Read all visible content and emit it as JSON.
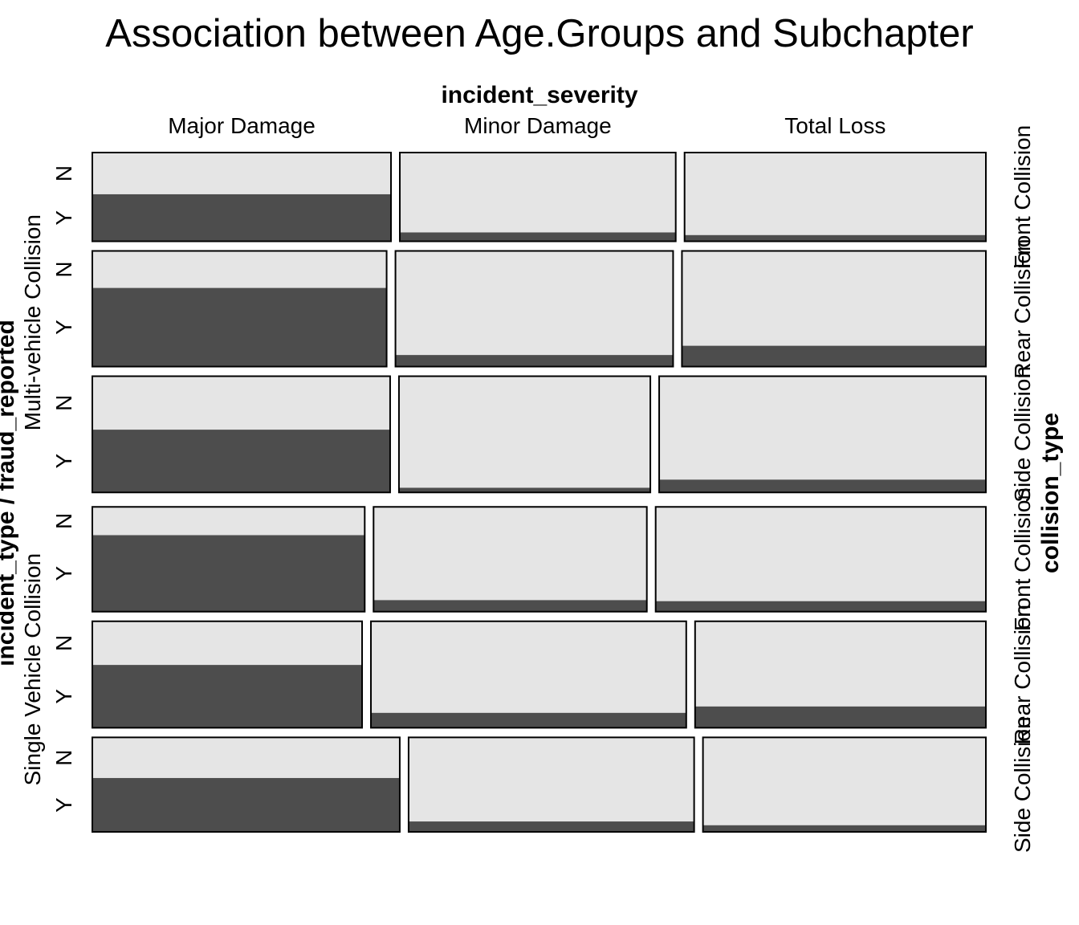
{
  "chart_data": {
    "type": "mosaic",
    "title": "Association between Age.Groups and Subchapter",
    "column_variable": "incident_severity",
    "left_variable": "incident_type / fraud_reported",
    "right_variable": "collision_type",
    "columns": [
      "Major Damage",
      "Minor Damage",
      "Total Loss"
    ],
    "fill_levels": [
      "N",
      "Y"
    ],
    "colors": {
      "N": "#e5e5e5",
      "Y": "#4d4d4d",
      "border": "#000000"
    },
    "incident_groups": [
      {
        "name": "Multi-vehicle Collision",
        "rows": [
          0,
          1,
          2
        ]
      },
      {
        "name": "Single Vehicle Collision",
        "rows": [
          3,
          4,
          5
        ]
      }
    ],
    "rows": [
      {
        "incident_type": "Multi-vehicle Collision",
        "collision_type": "Front Collision",
        "row_share": 0.155,
        "col_share": [
          0.341,
          0.315,
          0.344
        ],
        "y_share": [
          0.53,
          0.1,
          0.07
        ]
      },
      {
        "incident_type": "Multi-vehicle Collision",
        "collision_type": "Rear Collision",
        "row_share": 0.202,
        "col_share": [
          0.336,
          0.317,
          0.347
        ],
        "y_share": [
          0.68,
          0.1,
          0.18
        ]
      },
      {
        "incident_type": "Multi-vehicle Collision",
        "collision_type": "Side Collision",
        "row_share": 0.203,
        "col_share": [
          0.34,
          0.287,
          0.373
        ],
        "y_share": [
          0.54,
          0.04,
          0.11
        ]
      },
      {
        "incident_type": "Single Vehicle Collision",
        "collision_type": "Front Collision",
        "row_share": 0.183,
        "col_share": [
          0.311,
          0.312,
          0.377
        ],
        "y_share": [
          0.73,
          0.11,
          0.1
        ]
      },
      {
        "incident_type": "Single Vehicle Collision",
        "collision_type": "Rear Collision",
        "row_share": 0.186,
        "col_share": [
          0.308,
          0.36,
          0.332
        ],
        "y_share": [
          0.59,
          0.14,
          0.2
        ]
      },
      {
        "incident_type": "Single Vehicle Collision",
        "collision_type": "Side Collision",
        "row_share": 0.165,
        "col_share": [
          0.351,
          0.326,
          0.323
        ],
        "y_share": [
          0.57,
          0.11,
          0.07
        ]
      }
    ]
  }
}
